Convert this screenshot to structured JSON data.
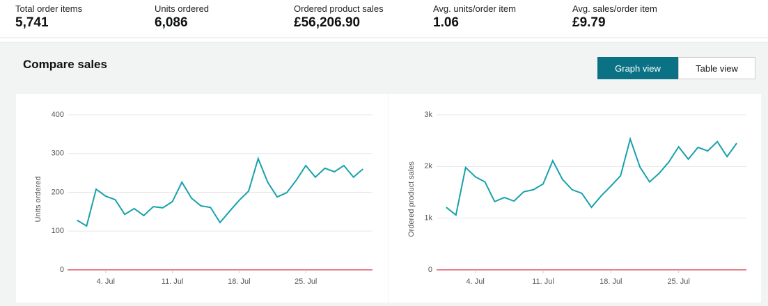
{
  "metrics": [
    {
      "label": "Total order items",
      "value": "5,741"
    },
    {
      "label": "Units ordered",
      "value": "6,086"
    },
    {
      "label": "Ordered product sales",
      "value": "£56,206.90"
    },
    {
      "label": "Avg. units/order item",
      "value": "1.06"
    },
    {
      "label": "Avg. sales/order item",
      "value": "£9.79"
    }
  ],
  "section_title": "Compare sales",
  "view_buttons": {
    "graph": "Graph view",
    "table": "Table view"
  },
  "chart_data": [
    {
      "type": "line",
      "ylabel": "Units ordered",
      "color": "#17a1ab",
      "zero_line_color": "#d0021b",
      "grid": true,
      "x": [
        1,
        2,
        3,
        4,
        5,
        6,
        7,
        8,
        9,
        10,
        11,
        12,
        13,
        14,
        15,
        16,
        17,
        18,
        19,
        20,
        21,
        22,
        23,
        24,
        25,
        26,
        27,
        28,
        29,
        30,
        31
      ],
      "values": [
        128,
        113,
        208,
        190,
        181,
        143,
        158,
        140,
        163,
        160,
        176,
        226,
        185,
        165,
        161,
        122,
        151,
        179,
        203,
        287,
        226,
        188,
        199,
        231,
        269,
        239,
        262,
        253,
        269,
        239,
        260
      ],
      "xlim": [
        0,
        32
      ],
      "xticks": [
        {
          "value": 4,
          "label": "4. Jul"
        },
        {
          "value": 11,
          "label": "11. Jul"
        },
        {
          "value": 18,
          "label": "18. Jul"
        },
        {
          "value": 25,
          "label": "25. Jul"
        }
      ],
      "ylim": [
        0,
        400
      ],
      "yticks": [
        0,
        100,
        200,
        300,
        400
      ]
    },
    {
      "type": "line",
      "ylabel": "Ordered product sales",
      "color": "#17a1ab",
      "zero_line_color": "#d0021b",
      "grid": true,
      "x": [
        1,
        2,
        3,
        4,
        5,
        6,
        7,
        8,
        9,
        10,
        11,
        12,
        13,
        14,
        15,
        16,
        17,
        18,
        19,
        20,
        21,
        22,
        23,
        24,
        25,
        26,
        27,
        28,
        29,
        30,
        31
      ],
      "values": [
        1210,
        1060,
        1980,
        1800,
        1700,
        1320,
        1400,
        1330,
        1510,
        1550,
        1660,
        2110,
        1750,
        1550,
        1480,
        1210,
        1430,
        1620,
        1820,
        2530,
        1990,
        1700,
        1870,
        2090,
        2380,
        2140,
        2370,
        2300,
        2480,
        2190,
        2450
      ],
      "xlim": [
        0,
        32
      ],
      "xticks": [
        {
          "value": 4,
          "label": "4. Jul"
        },
        {
          "value": 11,
          "label": "11. Jul"
        },
        {
          "value": 18,
          "label": "18. Jul"
        },
        {
          "value": 25,
          "label": "25. Jul"
        }
      ],
      "ylim": [
        0,
        3000
      ],
      "yticks": [
        0,
        {
          "value": 1000,
          "label": "1k"
        },
        {
          "value": 2000,
          "label": "2k"
        },
        {
          "value": 3000,
          "label": "3k"
        }
      ]
    }
  ]
}
